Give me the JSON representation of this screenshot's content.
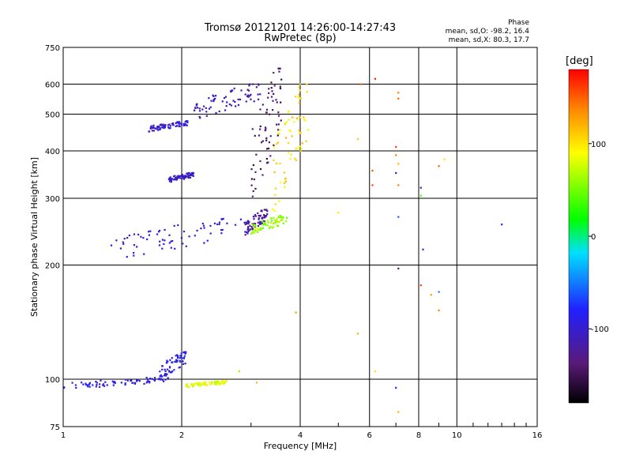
{
  "header": {
    "title_line1": "Tromsø 20121201 14:26:00-14:27:43",
    "title_line2": "RwPretec (8p)",
    "phase_label": "Phase",
    "phase_o_stats": "mean, sd,O: -98.2, 16.4",
    "phase_x_stats": "mean, sd,X: 80.3, 17.7"
  },
  "chart_data": {
    "type": "scatter",
    "xlabel": "Frequency [MHz]",
    "ylabel": "Stationary phase Virtual Height [km]",
    "x_scale": "log",
    "y_scale": "log",
    "xlim": [
      1,
      16
    ],
    "ylim": [
      75,
      750
    ],
    "x_ticks": [
      1,
      2,
      4,
      6,
      8,
      10,
      16
    ],
    "y_ticks": [
      75,
      100,
      200,
      300,
      400,
      500,
      600,
      750
    ],
    "grid": true,
    "colorbar": {
      "title": "[deg]",
      "range": [
        -180,
        180
      ],
      "ticks": [
        -100,
        0,
        100
      ],
      "colormap": "rainbow: black-purple-blue-cyan-green-yellow-orange-red"
    },
    "traces": [
      {
        "x_range": [
          1.0,
          1.85
        ],
        "y_range": [
          94,
          101
        ],
        "phase": -95
      },
      {
        "x_range": [
          1.75,
          2.05
        ],
        "y_range": [
          99,
          118
        ],
        "phase": -90
      },
      {
        "x_range": [
          2.05,
          2.6
        ],
        "y_range": [
          95,
          99
        ],
        "phase": 80
      },
      {
        "x_range": [
          1.65,
          2.1
        ],
        "y_range": [
          450,
          480
        ],
        "phase": -100
      },
      {
        "x_range": [
          1.85,
          2.15
        ],
        "y_range": [
          330,
          350
        ],
        "phase": -105
      },
      {
        "x_range": [
          2.15,
          3.2
        ],
        "y_range": [
          480,
          600
        ],
        "phase": -110
      },
      {
        "x_range": [
          1.3,
          2.9
        ],
        "y_range": [
          205,
          265
        ],
        "phase": -100
      },
      {
        "x_range": [
          2.9,
          3.3
        ],
        "y_range": [
          240,
          280
        ],
        "phase": -120
      },
      {
        "x_range": [
          3.0,
          3.6
        ],
        "y_range": [
          280,
          660
        ],
        "phase": -140
      },
      {
        "x_range": [
          3.0,
          3.7
        ],
        "y_range": [
          240,
          270
        ],
        "phase": 60
      },
      {
        "x_range": [
          3.4,
          4.2
        ],
        "y_range": [
          270,
          600
        ],
        "phase": 100
      }
    ],
    "scattered_points": [
      {
        "x": 5.7,
        "y": 600,
        "phase": 150
      },
      {
        "x": 6.2,
        "y": 620,
        "phase": 170
      },
      {
        "x": 7.1,
        "y": 570,
        "phase": 140
      },
      {
        "x": 7.1,
        "y": 550,
        "phase": 150
      },
      {
        "x": 7.0,
        "y": 410,
        "phase": 160
      },
      {
        "x": 7.0,
        "y": 390,
        "phase": 140
      },
      {
        "x": 7.1,
        "y": 370,
        "phase": 120
      },
      {
        "x": 6.1,
        "y": 355,
        "phase": 155
      },
      {
        "x": 6.1,
        "y": 325,
        "phase": 160
      },
      {
        "x": 7.0,
        "y": 350,
        "phase": -120
      },
      {
        "x": 7.1,
        "y": 325,
        "phase": 140
      },
      {
        "x": 8.1,
        "y": 320,
        "phase": -110
      },
      {
        "x": 8.1,
        "y": 305,
        "phase": 40
      },
      {
        "x": 9.0,
        "y": 365,
        "phase": 150
      },
      {
        "x": 9.3,
        "y": 380,
        "phase": 100
      },
      {
        "x": 7.1,
        "y": 268,
        "phase": -60
      },
      {
        "x": 8.2,
        "y": 220,
        "phase": -110
      },
      {
        "x": 7.1,
        "y": 196,
        "phase": -140
      },
      {
        "x": 8.1,
        "y": 177,
        "phase": 160
      },
      {
        "x": 9.0,
        "y": 170,
        "phase": -50
      },
      {
        "x": 8.6,
        "y": 167,
        "phase": 130
      },
      {
        "x": 9.0,
        "y": 152,
        "phase": 140
      },
      {
        "x": 13.0,
        "y": 256,
        "phase": -80
      },
      {
        "x": 5.0,
        "y": 275,
        "phase": 100
      },
      {
        "x": 5.6,
        "y": 430,
        "phase": 110
      },
      {
        "x": 5.6,
        "y": 132,
        "phase": 120
      },
      {
        "x": 6.2,
        "y": 105,
        "phase": 100
      },
      {
        "x": 7.0,
        "y": 95,
        "phase": -80
      },
      {
        "x": 7.1,
        "y": 82,
        "phase": 120
      },
      {
        "x": 3.9,
        "y": 150,
        "phase": 130
      },
      {
        "x": 2.8,
        "y": 105,
        "phase": 60
      },
      {
        "x": 3.1,
        "y": 98,
        "phase": 120
      }
    ]
  }
}
